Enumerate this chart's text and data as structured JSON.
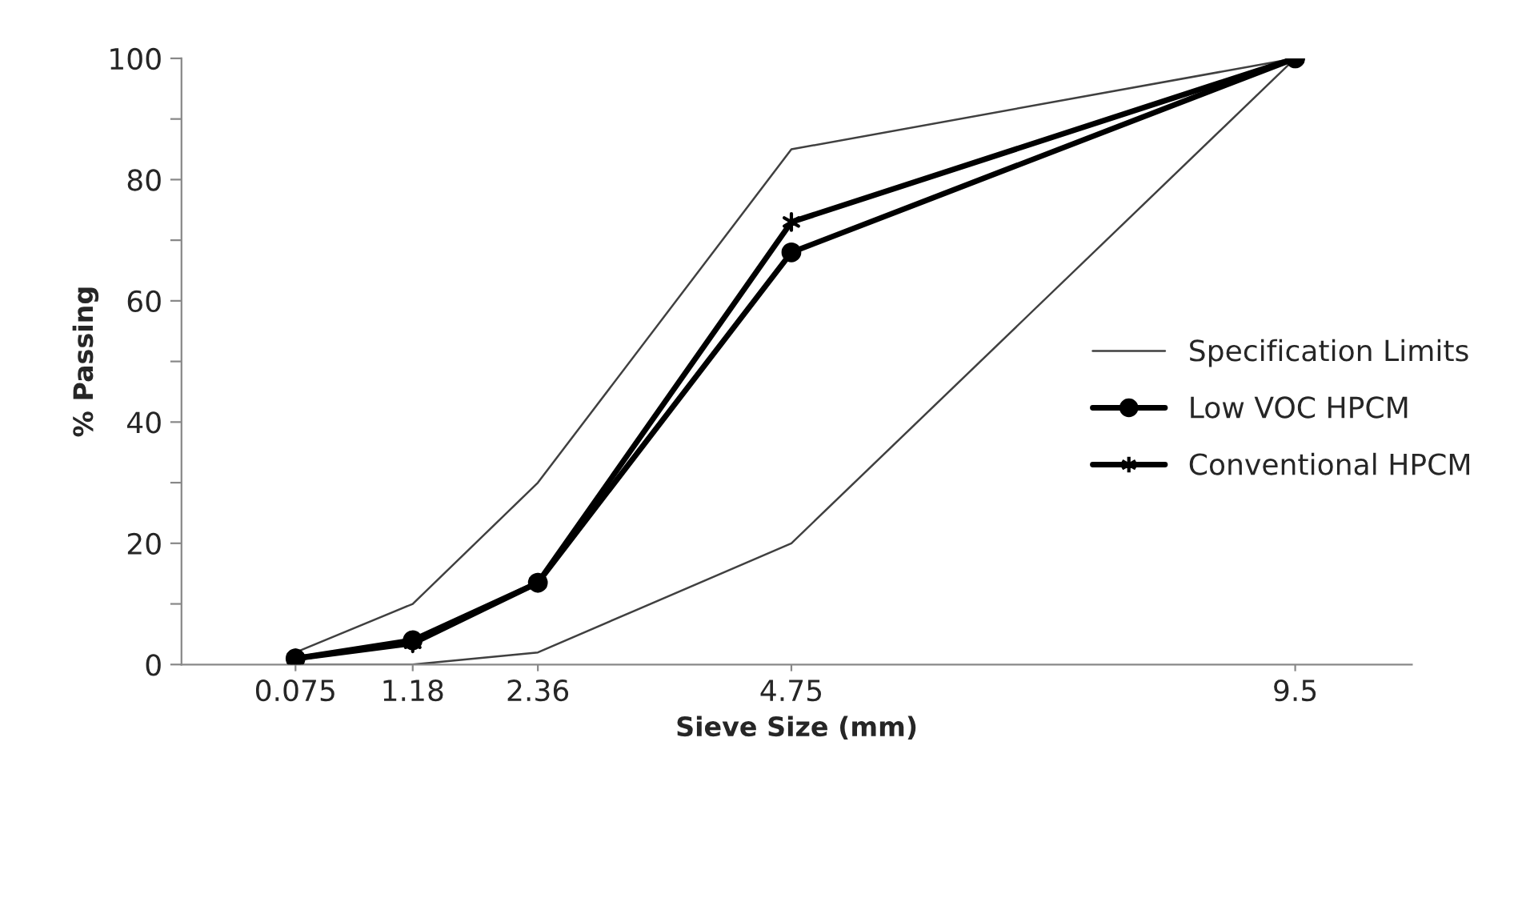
{
  "chart_data": {
    "type": "line",
    "xlabel": "Sieve Size (mm)",
    "ylabel": "% Passing",
    "x": [
      0.075,
      1.18,
      2.36,
      4.75,
      9.5
    ],
    "series": [
      {
        "name": "Specification Limits",
        "color": "#404040",
        "values": [
          2,
          10,
          30,
          85,
          100
        ],
        "marker": "none"
      },
      {
        "color": "#404040",
        "values": [
          0,
          0,
          2,
          20,
          100
        ],
        "marker": "none"
      },
      {
        "name": "Low VOC HPCM",
        "color": "#000000",
        "values": [
          1,
          4,
          13.5,
          68,
          100
        ],
        "marker": "circle"
      },
      {
        "name": "Conventional HPCM",
        "color": "#000000",
        "values": [
          1,
          3.5,
          13.5,
          73,
          100
        ],
        "marker": "cross"
      }
    ],
    "xlim": [
      -1,
      10.6
    ],
    "xticks": [
      0.075,
      1.18,
      2.36,
      4.75,
      9.5
    ],
    "ylim": [
      0,
      100
    ],
    "yticks": [
      0,
      {
        "value": 10,
        "label": null
      },
      20,
      {
        "value": 30,
        "label": null
      },
      40,
      {
        "value": 50,
        "label": null
      },
      60,
      {
        "value": 70,
        "label": null
      },
      80,
      {
        "value": 90,
        "label": null
      },
      100
    ],
    "legend": "right",
    "grid": false,
    "line_style": "solid"
  }
}
